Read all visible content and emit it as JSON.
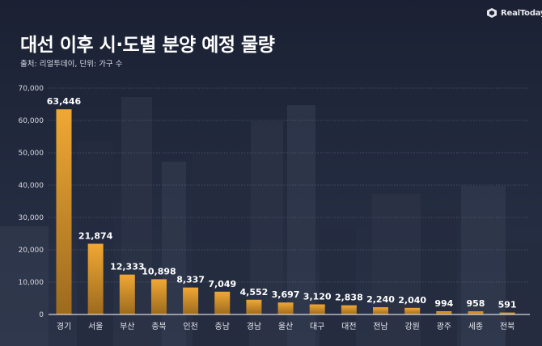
{
  "brand": {
    "name": "RealToday",
    "icon": "realtoday-logo-icon"
  },
  "header": {
    "title": "대선 이후 시·도별 분양 예정 물량",
    "source": "출처: 리얼투데이, 단위: 가구 수"
  },
  "colors": {
    "bar_top": "#f0a834",
    "bar_bottom": "#9c6a1e",
    "grid": "#6a7083",
    "axis": "#ffffff"
  },
  "chart_data": {
    "type": "bar",
    "title": "대선 이후 시·도별 분양 예정 물량",
    "xlabel": "",
    "ylabel": "가구 수",
    "ylim": [
      0,
      70000
    ],
    "yticks": [
      0,
      10000,
      20000,
      30000,
      40000,
      50000,
      60000,
      70000
    ],
    "ytick_labels": [
      "0",
      "10,000",
      "20,000",
      "30,000",
      "40,000",
      "50,000",
      "60,000",
      "70,000"
    ],
    "grid": true,
    "categories": [
      "경기",
      "서울",
      "부산",
      "충북",
      "인천",
      "충남",
      "경남",
      "울산",
      "대구",
      "대전",
      "전남",
      "강원",
      "광주",
      "세종",
      "전북"
    ],
    "values": [
      63446,
      21874,
      12333,
      10898,
      8337,
      7049,
      4552,
      3697,
      3120,
      2838,
      2240,
      2040,
      994,
      958,
      591
    ],
    "value_labels": [
      "63,446",
      "21,874",
      "12,333",
      "10,898",
      "8,337",
      "7,049",
      "4,552",
      "3,697",
      "3,120",
      "2,838",
      "2,240",
      "2,040",
      "994",
      "958",
      "591"
    ]
  }
}
